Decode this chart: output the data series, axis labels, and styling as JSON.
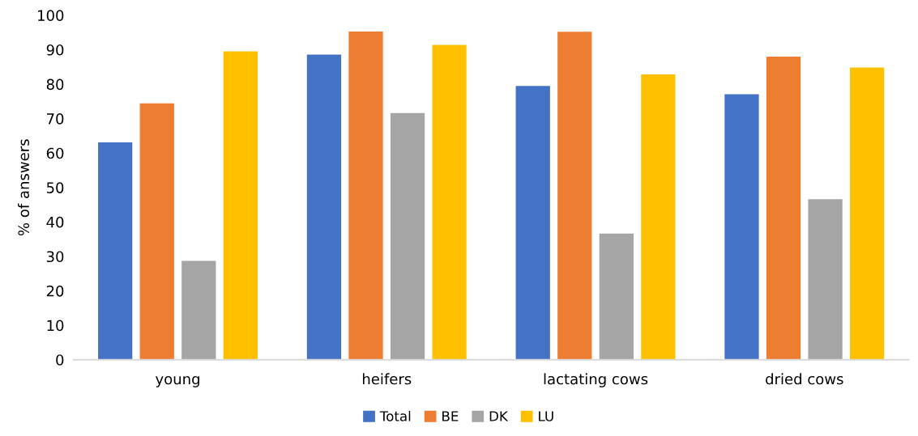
{
  "chart_data": {
    "type": "bar",
    "ylabel": "% of answers",
    "categories": [
      "young",
      "heifers",
      "lactating cows",
      "dried cows"
    ],
    "series": [
      {
        "name": "Total",
        "color": "#4472c4",
        "values": [
          63.1,
          88.6,
          79.5,
          77.1
        ]
      },
      {
        "name": "BE",
        "color": "#ed7d31",
        "values": [
          74.4,
          95.3,
          95.2,
          88.0
        ]
      },
      {
        "name": "DK",
        "color": "#a5a5a5",
        "values": [
          28.7,
          71.6,
          36.6,
          46.6
        ]
      },
      {
        "name": "LU",
        "color": "#ffc000",
        "values": [
          89.5,
          91.4,
          82.8,
          84.8
        ]
      }
    ],
    "ylim": [
      0,
      100
    ],
    "yticks": [
      0,
      10,
      20,
      30,
      40,
      50,
      60,
      70,
      80,
      90,
      100
    ],
    "grid": false,
    "legend": "bottom"
  }
}
